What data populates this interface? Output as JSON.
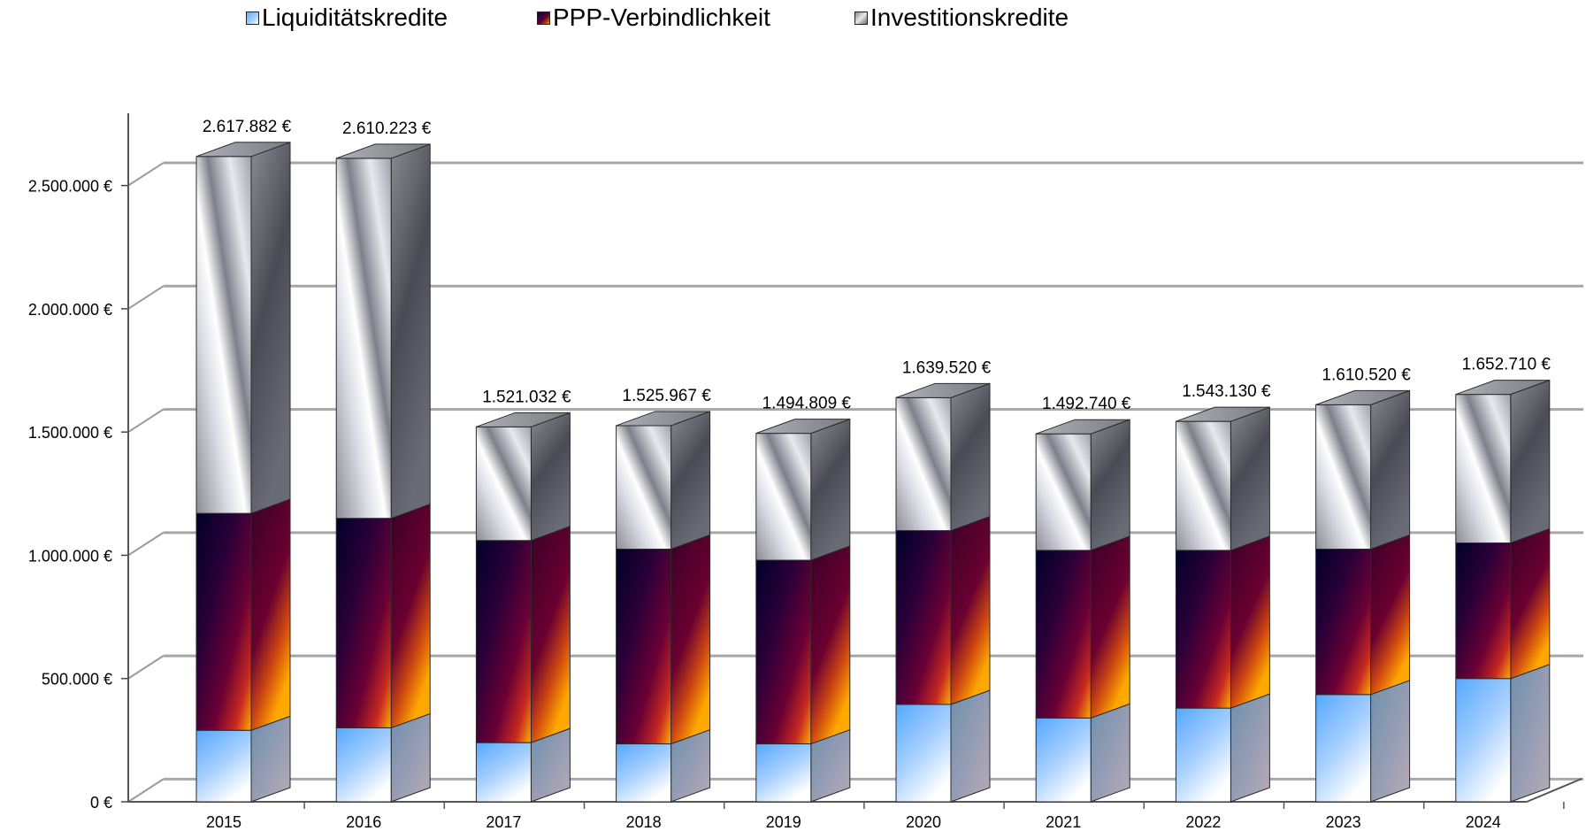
{
  "legend": {
    "liquiditaet": "Liquiditätskredite",
    "ppp": "PPP-Verbindlichkeit",
    "invest": "Investitionskredite"
  },
  "colors": {
    "liquiditaet": "#7ab8f5",
    "ppp": "#4a0030",
    "invest": "#c8c8cc",
    "grid": "#a6a6a6"
  },
  "chart_data": {
    "type": "bar",
    "stacked": true,
    "three_d": true,
    "categories": [
      "2015",
      "2016",
      "2017",
      "2018",
      "2019",
      "2020",
      "2021",
      "2022",
      "2023",
      "2024"
    ],
    "series": [
      {
        "name": "Liquiditätskredite",
        "values": [
          290000,
          300000,
          240000,
          235000,
          235000,
          395000,
          340000,
          380000,
          435000,
          500000
        ]
      },
      {
        "name": "PPP-Verbindlichkeit",
        "values": [
          880000,
          850000,
          820000,
          790000,
          745000,
          705000,
          680000,
          640000,
          590000,
          550000
        ]
      },
      {
        "name": "Investitionskredite",
        "values": [
          1447882,
          1460223,
          461032,
          500967,
          514809,
          539520,
          472740,
          523130,
          585520,
          602710
        ]
      }
    ],
    "totals": [
      "2.617.882  €",
      "2.610.223  €",
      "1.521.032  €",
      "1.525.967  €",
      "1.494.809  €",
      "1.639.520  €",
      "1.492.740  €",
      "1.543.130  €",
      "1.610.520  €",
      "1.652.710  €"
    ],
    "y_ticks": [
      {
        "value": 0,
        "label": "0 €"
      },
      {
        "value": 500000,
        "label": "500.000  €"
      },
      {
        "value": 1000000,
        "label": "1.000.000  €"
      },
      {
        "value": 1500000,
        "label": "1.500.000  €"
      },
      {
        "value": 2000000,
        "label": "2.000.000  €"
      },
      {
        "value": 2500000,
        "label": "2.500.000  €"
      }
    ],
    "ylim": [
      0,
      2750000
    ],
    "grid": true,
    "legend_position": "top-left"
  }
}
